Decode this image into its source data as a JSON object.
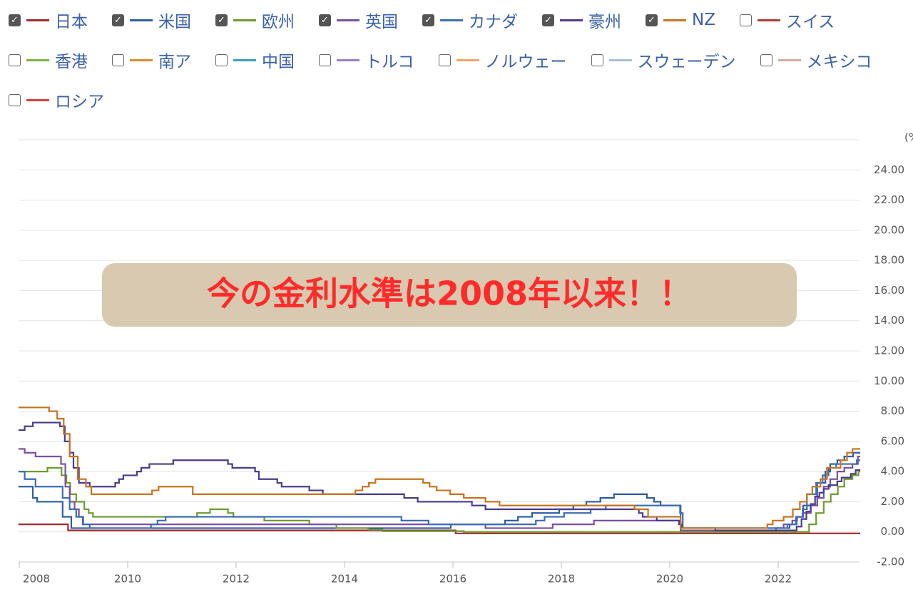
{
  "chart_data": {
    "type": "step-line",
    "annotation": "今の金利水準は2008年以来！！",
    "y_unit": "(%)",
    "xlim": [
      2008,
      2023.5
    ],
    "xticks": [
      2008,
      2010,
      2012,
      2014,
      2016,
      2018,
      2020,
      2022
    ],
    "ylim": [
      -2,
      26
    ],
    "yticks": [
      {
        "value": -2,
        "label": "-2.00"
      },
      {
        "value": 0,
        "label": "0.00"
      },
      {
        "value": 2,
        "label": "2.00"
      },
      {
        "value": 4,
        "label": "4.00"
      },
      {
        "value": 6,
        "label": "6.00"
      },
      {
        "value": 8,
        "label": "8.00"
      },
      {
        "value": 10,
        "label": "10.00"
      },
      {
        "value": 12,
        "label": "12.00"
      },
      {
        "value": 14,
        "label": "14.00"
      },
      {
        "value": 16,
        "label": "16.00"
      },
      {
        "value": 18,
        "label": "18.00"
      },
      {
        "value": 20,
        "label": "20.00"
      },
      {
        "value": 22,
        "label": "22.00"
      },
      {
        "value": 24,
        "label": "24.00"
      }
    ],
    "grid": true,
    "series": [
      {
        "name": "日本",
        "color": "#a3282c",
        "x": [
          2008,
          2008.9,
          2016.05
        ],
        "values": [
          0.5,
          0.1,
          -0.1
        ]
      },
      {
        "name": "米国",
        "color": "#2d5da6",
        "x": [
          2008,
          2008.25,
          2008.33,
          2008.8,
          2008.96,
          2015.96,
          2016.96,
          2017.2,
          2017.46,
          2017.96,
          2018.22,
          2018.46,
          2018.72,
          2018.97,
          2019.58,
          2019.71,
          2019.83,
          2020.2,
          2022.21,
          2022.34,
          2022.46,
          2022.72,
          2022.87,
          2022.96,
          2023.09,
          2023.22,
          2023.38
        ],
        "values": [
          3.0,
          2.25,
          2.0,
          1.0,
          0.25,
          0.5,
          0.75,
          1.0,
          1.25,
          1.5,
          1.75,
          2.0,
          2.25,
          2.5,
          2.25,
          2.0,
          1.75,
          0.25,
          0.5,
          1.0,
          1.75,
          3.25,
          4.0,
          4.5,
          4.75,
          5.0,
          5.25
        ]
      },
      {
        "name": "欧州",
        "color": "#6e9b2e",
        "x": [
          2008,
          2008.52,
          2008.78,
          2008.87,
          2008.94,
          2009.05,
          2009.2,
          2009.28,
          2009.36,
          2011.28,
          2011.52,
          2011.85,
          2011.95,
          2012.52,
          2013.35,
          2013.85,
          2014.44,
          2014.7,
          2016.2,
          2022.57,
          2022.7,
          2022.84,
          2022.97,
          2023.1,
          2023.22,
          2023.37,
          2023.48
        ],
        "values": [
          4.0,
          4.25,
          3.75,
          3.25,
          2.5,
          2.0,
          1.5,
          1.25,
          1.0,
          1.25,
          1.5,
          1.25,
          1.0,
          0.75,
          0.5,
          0.25,
          0.15,
          0.05,
          0,
          0.5,
          1.25,
          2.0,
          2.5,
          3.0,
          3.5,
          3.75,
          4.0
        ]
      },
      {
        "name": "英国",
        "color": "#7a4fa0",
        "x": [
          2008,
          2008.1,
          2008.3,
          2008.77,
          2008.85,
          2008.93,
          2009.02,
          2009.1,
          2009.18,
          2016.6,
          2017.84,
          2018.6,
          2020.2,
          2021.96,
          2022.1,
          2022.26,
          2022.35,
          2022.46,
          2022.6,
          2022.72,
          2022.84,
          2022.96,
          2023.09,
          2023.22,
          2023.37,
          2023.47
        ],
        "values": [
          5.5,
          5.25,
          5.0,
          4.5,
          3.0,
          2.0,
          1.5,
          1.0,
          0.5,
          0.25,
          0.5,
          0.75,
          0.1,
          0.25,
          0.5,
          0.75,
          1.0,
          1.25,
          1.75,
          2.25,
          3.0,
          3.5,
          4.0,
          4.25,
          4.5,
          5.0
        ]
      },
      {
        "name": "カナダ",
        "color": "#3a6db5",
        "x": [
          2008,
          2008.1,
          2008.3,
          2008.8,
          2008.93,
          2009.05,
          2009.17,
          2009.3,
          2010.43,
          2010.55,
          2010.7,
          2015.05,
          2015.55,
          2017.53,
          2017.69,
          2018.05,
          2018.54,
          2018.82,
          2020.19,
          2020.24,
          2022.17,
          2022.33,
          2022.45,
          2022.53,
          2022.7,
          2022.82,
          2022.93,
          2023.07,
          2023.45
        ],
        "values": [
          4.0,
          3.5,
          3.0,
          2.25,
          1.5,
          1.0,
          0.5,
          0.25,
          0.5,
          0.75,
          1.0,
          0.75,
          0.5,
          0.75,
          1.0,
          1.25,
          1.5,
          1.75,
          1.25,
          0.25,
          0.5,
          1.0,
          1.5,
          2.5,
          3.25,
          3.75,
          4.25,
          4.5,
          4.75
        ]
      },
      {
        "name": "豪州",
        "color": "#4b3a8c",
        "x": [
          2008,
          2008.1,
          2008.25,
          2008.75,
          2008.84,
          2008.93,
          2009.0,
          2009.1,
          2009.3,
          2009.77,
          2009.84,
          2009.92,
          2010.17,
          2010.25,
          2010.4,
          2010.84,
          2011.85,
          2011.93,
          2012.35,
          2012.42,
          2012.76,
          2012.84,
          2013.35,
          2013.6,
          2015.1,
          2015.35,
          2016.35,
          2016.6,
          2019.43,
          2019.5,
          2019.76,
          2020.17,
          2020.22,
          2020.84,
          2022.34,
          2022.43,
          2022.52,
          2022.6,
          2022.68,
          2022.76,
          2022.84,
          2022.93,
          2023.09,
          2023.17,
          2023.34,
          2023.43
        ],
        "values": [
          6.75,
          7.0,
          7.25,
          7.0,
          6.0,
          5.25,
          4.25,
          3.25,
          3.0,
          3.25,
          3.5,
          3.75,
          4.0,
          4.25,
          4.5,
          4.75,
          4.5,
          4.25,
          4.0,
          3.5,
          3.25,
          3.0,
          2.75,
          2.5,
          2.25,
          2.0,
          1.75,
          1.5,
          1.25,
          1.0,
          0.75,
          0.5,
          0.25,
          0.1,
          0.35,
          0.85,
          1.35,
          1.85,
          2.35,
          2.6,
          2.85,
          3.1,
          3.35,
          3.6,
          3.85,
          4.1
        ]
      },
      {
        "name": "NZ",
        "color": "#c8741e",
        "x": [
          2008,
          2008.55,
          2008.7,
          2008.82,
          2008.93,
          2009.08,
          2009.23,
          2009.33,
          2010.45,
          2010.57,
          2011.2,
          2014.2,
          2014.33,
          2014.45,
          2014.57,
          2015.45,
          2015.57,
          2015.7,
          2015.95,
          2016.2,
          2016.6,
          2016.86,
          2019.35,
          2019.6,
          2020.2,
          2021.8,
          2021.9,
          2022.1,
          2022.27,
          2022.4,
          2022.53,
          2022.63,
          2022.78,
          2022.9,
          2023.15,
          2023.27,
          2023.37
        ],
        "values": [
          8.25,
          8.0,
          7.5,
          6.5,
          5.0,
          3.5,
          3.0,
          2.5,
          2.75,
          3.0,
          2.5,
          2.75,
          3.0,
          3.25,
          3.5,
          3.25,
          3.0,
          2.75,
          2.5,
          2.25,
          2.0,
          1.75,
          1.5,
          1.0,
          0.25,
          0.5,
          0.75,
          1.0,
          1.5,
          2.0,
          2.5,
          3.0,
          3.5,
          4.25,
          4.75,
          5.25,
          5.5
        ]
      }
    ],
    "hidden_series": [
      {
        "name": "スイス",
        "color": "#b23a36"
      },
      {
        "name": "香港",
        "color": "#7cb342"
      },
      {
        "name": "南ア",
        "color": "#e08a2a"
      },
      {
        "name": "中国",
        "color": "#3a9ec2"
      },
      {
        "name": "トルコ",
        "color": "#9b7fc8"
      },
      {
        "name": "ノルウェー",
        "color": "#f4a460"
      },
      {
        "name": "スウェーデン",
        "color": "#a9bfd8"
      },
      {
        "name": "メキシコ",
        "color": "#d9a8a8"
      },
      {
        "name": "ロシア",
        "color": "#e83a3a"
      }
    ]
  }
}
